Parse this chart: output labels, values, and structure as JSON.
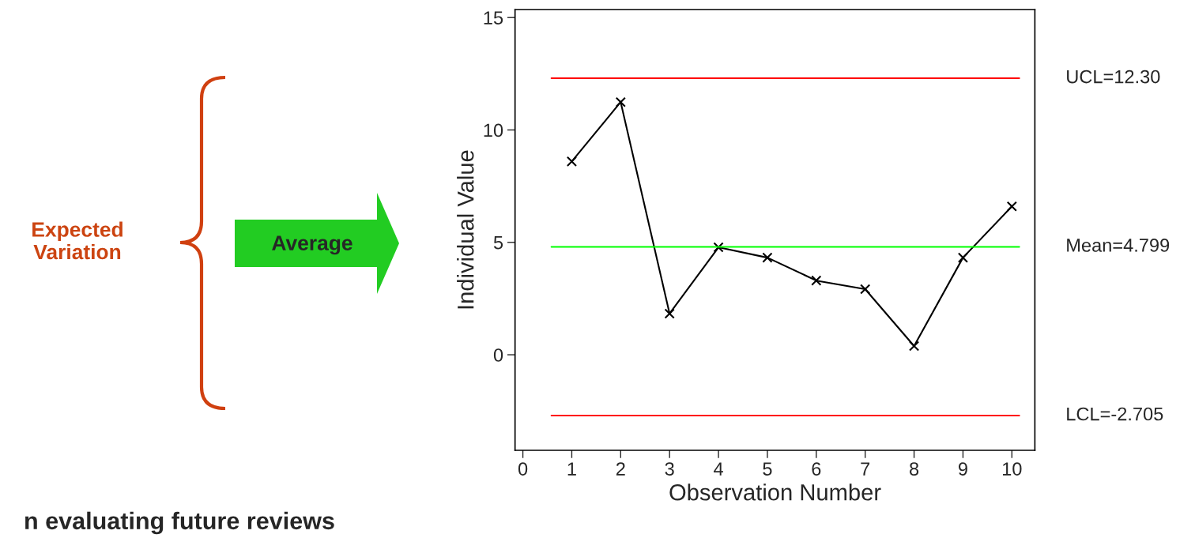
{
  "chart_data": {
    "type": "line",
    "xlabel": "Observation Number",
    "ylabel": "Individual Value",
    "x": [
      1,
      2,
      3,
      4,
      5,
      6,
      7,
      8,
      9,
      10
    ],
    "series": [
      {
        "color": "#000000",
        "values": [
          8.6,
          11.24,
          1.83,
          4.78,
          4.32,
          3.3,
          2.92,
          0.39,
          4.32,
          6.6
        ]
      }
    ],
    "marker": "cross",
    "line_style": "solid",
    "xlim": [
      -0.16,
      10.47
    ],
    "xticks": [
      0,
      1,
      2,
      3,
      4,
      5,
      6,
      7,
      8,
      9,
      10
    ],
    "ylim": [
      -4.25,
      15.35
    ],
    "yticks": [
      0,
      5,
      10,
      15
    ],
    "grid": false,
    "legend": false,
    "ref_lines": [
      {
        "axis": "y",
        "value": 12.3,
        "label": "UCL=12.30",
        "color": "#ff0000"
      },
      {
        "axis": "y",
        "value": 4.799,
        "label": "Mean=4.799",
        "color": "#00ff00"
      },
      {
        "axis": "y",
        "value": -2.705,
        "label": "LCL=-2.705",
        "color": "#ff0000"
      }
    ],
    "annotations": [
      "Expected\nVariation",
      "Average",
      "n evaluating future reviews"
    ]
  }
}
